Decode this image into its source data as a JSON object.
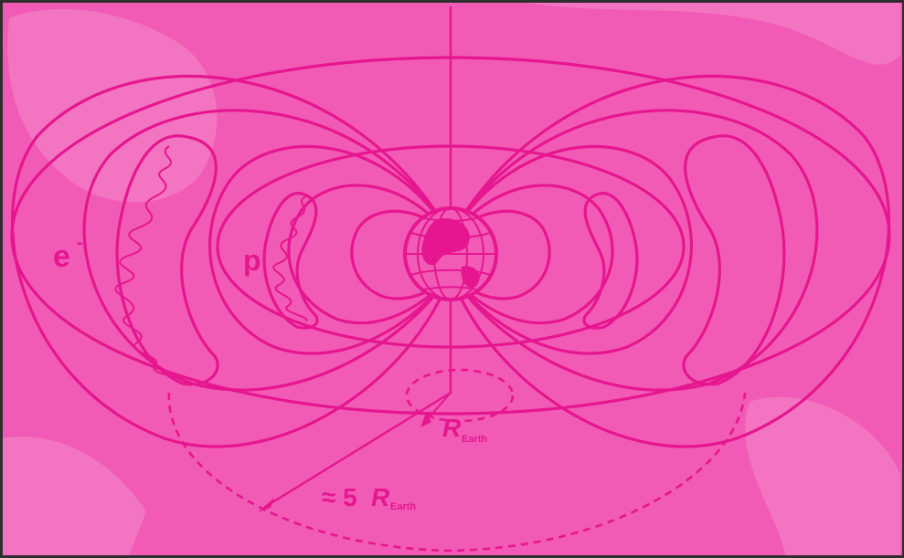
{
  "colors": {
    "background": "#f25bb5",
    "ink": "#e5168f",
    "ghost": "#f7a5d6"
  },
  "labels": {
    "electron": "e",
    "electron_sup": "-",
    "proton": "p",
    "earth_radius_main": "R",
    "earth_radius_sub": "Earth",
    "approx_radius_prefix": "≈ 5",
    "approx_radius_main": "R",
    "approx_radius_sub": "Earth"
  },
  "icons": [
    "earth-globe-icon"
  ]
}
